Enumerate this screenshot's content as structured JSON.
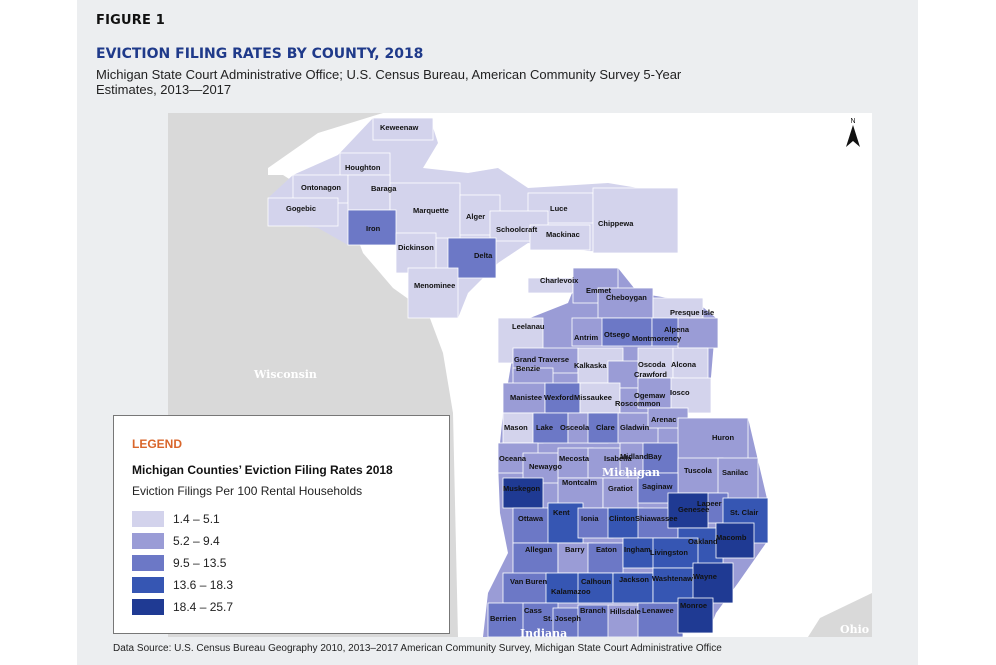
{
  "figure_label": "FIGURE 1",
  "title": "EVICTION FILING RATES BY COUNTY, 2018",
  "subtitle": "Michigan State Court Administrative Office; U.S. Census Bureau, American Community Survey 5-Year Estimates, 2013—2017",
  "north_label": "N",
  "state_labels": {
    "michigan": "Michigan",
    "wisconsin": "Wisconsin",
    "indiana": "Indiana",
    "ohio": "Ohio"
  },
  "legend": {
    "title": "LEGEND",
    "heading": "Michigan Counties’ Eviction Filing Rates 2018",
    "subheading": "Eviction Filings Per 100 Rental Households",
    "classes": [
      {
        "label": "1.4 – 5.1",
        "color": "#d3d3ec"
      },
      {
        "label": "5.2 – 9.4",
        "color": "#9a9cd6"
      },
      {
        "label": "9.5 – 13.5",
        "color": "#6c78c6"
      },
      {
        "label": "13.6 – 18.3",
        "color": "#3656b3"
      },
      {
        "label": "18.4 – 25.7",
        "color": "#1f3a93"
      }
    ]
  },
  "colors": {
    "land_other": "#d9d9d9",
    "water": "#ffffff",
    "county_border": "#ffffff"
  },
  "counties": [
    {
      "name": "Keweenaw",
      "class": 0
    },
    {
      "name": "Houghton",
      "class": 0
    },
    {
      "name": "Ontonagon",
      "class": 0
    },
    {
      "name": "Baraga",
      "class": 0
    },
    {
      "name": "Gogebic",
      "class": 0
    },
    {
      "name": "Marquette",
      "class": 0
    },
    {
      "name": "Alger",
      "class": 0
    },
    {
      "name": "Luce",
      "class": 0
    },
    {
      "name": "Chippewa",
      "class": 0
    },
    {
      "name": "Schoolcraft",
      "class": 0
    },
    {
      "name": "Mackinac",
      "class": 0
    },
    {
      "name": "Iron",
      "class": 2
    },
    {
      "name": "Dickinson",
      "class": 0
    },
    {
      "name": "Delta",
      "class": 2
    },
    {
      "name": "Menominee",
      "class": 0
    },
    {
      "name": "Charlevoix",
      "class": 0
    },
    {
      "name": "Emmet",
      "class": 1
    },
    {
      "name": "Cheboygan",
      "class": 1
    },
    {
      "name": "Presque Isle",
      "class": 0
    },
    {
      "name": "Leelanau",
      "class": 0
    },
    {
      "name": "Antrim",
      "class": 1
    },
    {
      "name": "Otsego",
      "class": 2
    },
    {
      "name": "Montmorency",
      "class": 2
    },
    {
      "name": "Alpena",
      "class": 1
    },
    {
      "name": "Grand Traverse",
      "class": 1
    },
    {
      "name": "Benzie",
      "class": 1
    },
    {
      "name": "Kalkaska",
      "class": 0
    },
    {
      "name": "Crawford",
      "class": 1
    },
    {
      "name": "Oscoda",
      "class": 0
    },
    {
      "name": "Alcona",
      "class": 0
    },
    {
      "name": "Manistee",
      "class": 1
    },
    {
      "name": "Wexford",
      "class": 2
    },
    {
      "name": "Missaukee",
      "class": 0
    },
    {
      "name": "Roscommon",
      "class": 1
    },
    {
      "name": "Ogemaw",
      "class": 1
    },
    {
      "name": "Iosco",
      "class": 0
    },
    {
      "name": "Mason",
      "class": 0
    },
    {
      "name": "Lake",
      "class": 2
    },
    {
      "name": "Osceola",
      "class": 1
    },
    {
      "name": "Clare",
      "class": 2
    },
    {
      "name": "Gladwin",
      "class": 1
    },
    {
      "name": "Arenac",
      "class": 1
    },
    {
      "name": "Huron",
      "class": 1
    },
    {
      "name": "Oceana",
      "class": 1
    },
    {
      "name": "Newaygo",
      "class": 1
    },
    {
      "name": "Mecosta",
      "class": 1
    },
    {
      "name": "Isabella",
      "class": 1
    },
    {
      "name": "Midland",
      "class": 1
    },
    {
      "name": "Bay",
      "class": 2
    },
    {
      "name": "Tuscola",
      "class": 1
    },
    {
      "name": "Sanilac",
      "class": 1
    },
    {
      "name": "Muskegon",
      "class": 4
    },
    {
      "name": "Montcalm",
      "class": 1
    },
    {
      "name": "Gratiot",
      "class": 1
    },
    {
      "name": "Saginaw",
      "class": 2
    },
    {
      "name": "Lapeer",
      "class": 2
    },
    {
      "name": "St. Clair",
      "class": 3
    },
    {
      "name": "Ottawa",
      "class": 2
    },
    {
      "name": "Kent",
      "class": 3
    },
    {
      "name": "Ionia",
      "class": 2
    },
    {
      "name": "Clinton",
      "class": 3
    },
    {
      "name": "Shiawassee",
      "class": 2
    },
    {
      "name": "Genesee",
      "class": 4
    },
    {
      "name": "Oakland",
      "class": 3
    },
    {
      "name": "Macomb",
      "class": 4
    },
    {
      "name": "Allegan",
      "class": 2
    },
    {
      "name": "Barry",
      "class": 1
    },
    {
      "name": "Eaton",
      "class": 2
    },
    {
      "name": "Ingham",
      "class": 3
    },
    {
      "name": "Livingston",
      "class": 3
    },
    {
      "name": "Van Buren",
      "class": 2
    },
    {
      "name": "Kalamazoo",
      "class": 3
    },
    {
      "name": "Calhoun",
      "class": 3
    },
    {
      "name": "Jackson",
      "class": 3
    },
    {
      "name": "Washtenaw",
      "class": 3
    },
    {
      "name": "Wayne",
      "class": 4
    },
    {
      "name": "Berrien",
      "class": 2
    },
    {
      "name": "Cass",
      "class": 2
    },
    {
      "name": "St. Joseph",
      "class": 2
    },
    {
      "name": "Branch",
      "class": 2
    },
    {
      "name": "Hillsdale",
      "class": 1
    },
    {
      "name": "Lenawee",
      "class": 2
    },
    {
      "name": "Monroe",
      "class": 4
    }
  ],
  "data_source": "Data Source: U.S. Census Bureau Geography 2010, 2013–2017 American Community Survey, Michigan State Court Administrative Office"
}
